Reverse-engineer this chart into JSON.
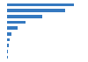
{
  "values": [
    850000,
    740000,
    450000,
    240000,
    130000,
    60000,
    35000,
    22000,
    14000,
    7000
  ],
  "bar_color": "#3579c0",
  "background_color": "#ffffff",
  "grid_color": "#e0e0e0",
  "xlim": [
    0,
    1000000
  ],
  "bar_height": 0.55,
  "n_bars": 10
}
